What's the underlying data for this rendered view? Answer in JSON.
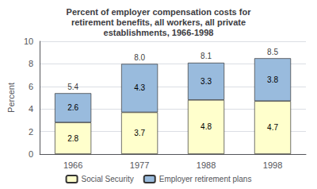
{
  "chart_data": {
    "type": "bar",
    "title": "Percent of employer compensation costs for\nretirement benefits, all workers, all private\nestablishments, 1966-1998",
    "categories": [
      "1966",
      "1977",
      "1988",
      "1998"
    ],
    "series": [
      {
        "name": "Social Security",
        "color": "#ffffcc",
        "values": [
          2.8,
          3.7,
          4.8,
          4.7
        ]
      },
      {
        "name": "Employer retirement plans",
        "color": "#99bbdd",
        "values": [
          2.6,
          4.3,
          3.3,
          3.8
        ]
      }
    ],
    "totals": {
      "values": [
        5.4,
        8.0,
        8.1,
        8.5
      ],
      "value_labels": [
        "5.4",
        "8.0",
        "8.1",
        "8.5"
      ]
    },
    "ylabel": "Percent",
    "ylim": [
      0,
      10
    ],
    "yticks": [
      0,
      2,
      4,
      6,
      8,
      10
    ],
    "stacked": true,
    "data_labels": true,
    "grid": true,
    "legend": "bottom"
  }
}
